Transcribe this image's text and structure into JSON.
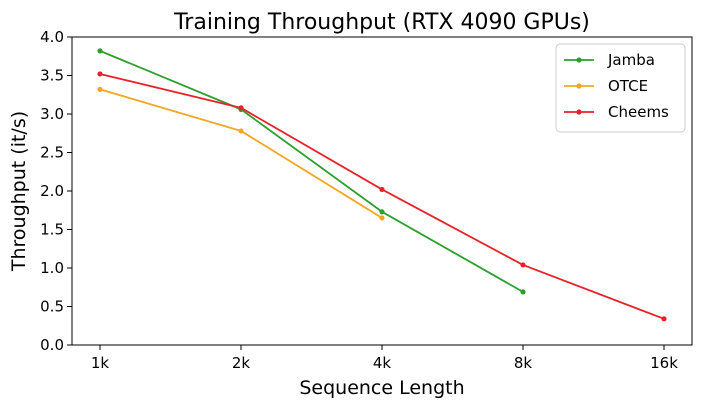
{
  "chart_data": {
    "type": "line",
    "title": "Training Throughput (RTX 4090 GPUs)",
    "xlabel": "Sequence Length",
    "ylabel": "Throughput (it/s)",
    "categories": [
      "1k",
      "2k",
      "4k",
      "8k",
      "16k"
    ],
    "ylim": [
      0,
      4.0
    ],
    "yticks": [
      "0.0",
      "0.5",
      "1.0",
      "1.5",
      "2.0",
      "2.5",
      "3.0",
      "3.5",
      "4.0"
    ],
    "grid": false,
    "legend_position": "top-right",
    "series": [
      {
        "name": "Jamba",
        "color": "#2ca02c",
        "values": [
          3.82,
          3.06,
          1.73,
          0.69,
          null
        ]
      },
      {
        "name": "OTCE",
        "color": "#f5a623",
        "values": [
          3.32,
          2.78,
          1.65,
          null,
          null
        ]
      },
      {
        "name": "Cheems",
        "color": "#e8222a",
        "values": [
          3.52,
          3.08,
          2.02,
          1.04,
          0.34
        ]
      }
    ]
  }
}
